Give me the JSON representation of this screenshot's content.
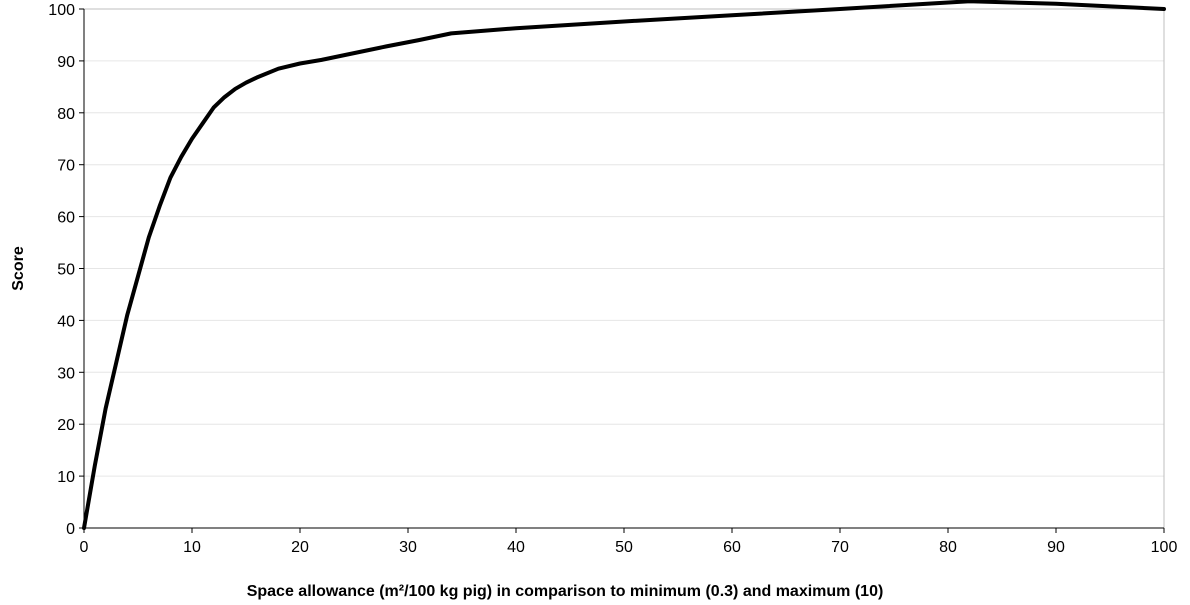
{
  "chart_data": {
    "type": "line",
    "title": "",
    "xlabel": "Space allowance (m²/100 kg pig) in comparison to minimum (0.3) and maximum (10)",
    "ylabel": "Score",
    "xlim": [
      0,
      100
    ],
    "ylim": [
      0,
      100
    ],
    "x_ticks": [
      0,
      10,
      20,
      30,
      40,
      50,
      60,
      70,
      80,
      90,
      100
    ],
    "y_ticks": [
      0,
      10,
      20,
      30,
      40,
      50,
      60,
      70,
      80,
      90,
      100
    ],
    "grid": true,
    "legend": "none",
    "series": [
      {
        "color": "#000000",
        "x": [
          0,
          1,
          2,
          3,
          4,
          5,
          6,
          7,
          8,
          9,
          10,
          11,
          12,
          13,
          14,
          15,
          16,
          18,
          20,
          22,
          25,
          28,
          31,
          34,
          40,
          50,
          60,
          70,
          82,
          90,
          100
        ],
        "y": [
          0,
          12,
          23,
          32,
          41,
          48.5,
          56,
          62,
          67.5,
          71.5,
          75,
          78,
          81,
          83,
          84.6,
          85.8,
          86.8,
          88.5,
          89.5,
          90.2,
          91.5,
          92.8,
          94,
          95.3,
          96.3,
          97.6,
          98.8,
          100,
          101.5,
          101,
          100
        ]
      }
    ]
  }
}
